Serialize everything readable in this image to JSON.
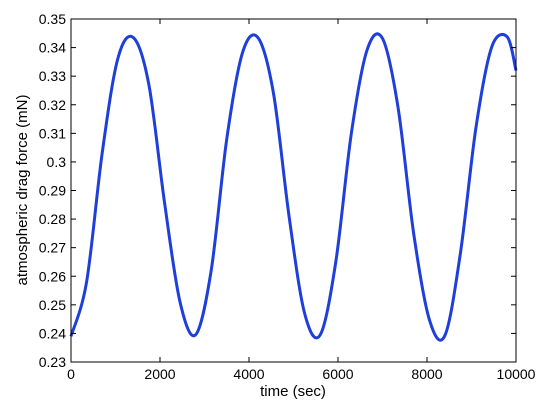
{
  "chart_data": {
    "type": "line",
    "title": "",
    "xlabel": "time (sec)",
    "ylabel": "atmospheric drag force (mN)",
    "xlim": [
      0,
      10000
    ],
    "ylim": [
      0.23,
      0.35
    ],
    "x_ticks": [
      0,
      2000,
      4000,
      6000,
      8000,
      10000
    ],
    "y_ticks": [
      0.23,
      0.24,
      0.25,
      0.26,
      0.27,
      0.28,
      0.29,
      0.3,
      0.31,
      0.32,
      0.33,
      0.34,
      0.35
    ],
    "x_tick_labels": [
      "0",
      "2000",
      "4000",
      "6000",
      "8000",
      "10000"
    ],
    "y_tick_labels": [
      "0.23",
      "0.24",
      "0.25",
      "0.26",
      "0.27",
      "0.28",
      "0.29",
      "0.3",
      "0.31",
      "0.32",
      "0.33",
      "0.34",
      "0.35"
    ],
    "grid": false,
    "legend": "none",
    "series": [
      {
        "color": "#1f3fdb",
        "x": [
          0,
          350,
          700,
          1050,
          1400,
          1750,
          2100,
          2450,
          2800,
          3150,
          3500,
          3850,
          4200,
          4550,
          4900,
          5250,
          5600,
          5950,
          6300,
          6650,
          7000,
          7350,
          7700,
          8050,
          8400,
          8750,
          9100,
          9450,
          9800,
          10000
        ],
        "y": [
          0.239,
          0.258,
          0.303,
          0.336,
          0.3435,
          0.327,
          0.286,
          0.251,
          0.2395,
          0.262,
          0.308,
          0.338,
          0.3435,
          0.324,
          0.281,
          0.247,
          0.2395,
          0.265,
          0.31,
          0.339,
          0.3432,
          0.319,
          0.275,
          0.245,
          0.2392,
          0.268,
          0.312,
          0.34,
          0.3438,
          0.332
        ]
      }
    ]
  }
}
